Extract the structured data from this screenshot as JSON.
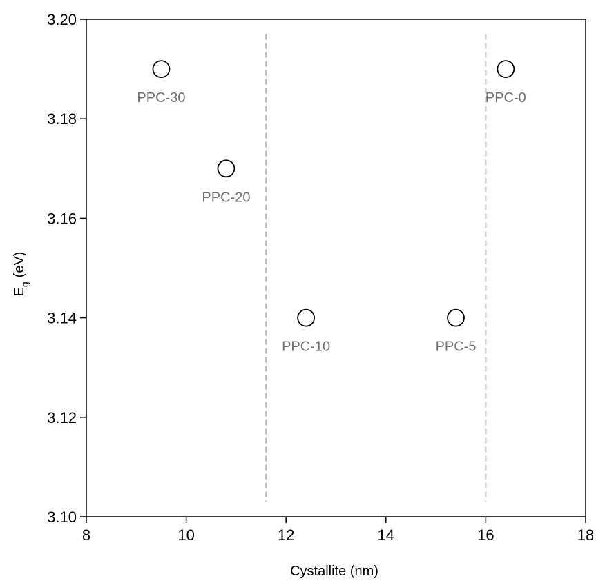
{
  "chart_data": {
    "type": "scatter",
    "title": "",
    "xlabel": "Cystallite (nm)",
    "ylabel": {
      "main": "E",
      "subscript": "g",
      "unit": "(eV)"
    },
    "xlim": [
      8,
      18
    ],
    "ylim": [
      3.1,
      3.2
    ],
    "xticks": [
      8,
      10,
      12,
      14,
      16,
      18
    ],
    "xtick_labels": [
      "8",
      "10",
      "12",
      "14",
      "16",
      "18"
    ],
    "yticks": [
      3.1,
      3.12,
      3.14,
      3.16,
      3.18,
      3.2
    ],
    "ytick_labels": [
      "3.10",
      "3.12",
      "3.14",
      "3.16",
      "3.18",
      "3.20"
    ],
    "grid": false,
    "legend": "none",
    "marker": "open-circle",
    "points": [
      {
        "label": "PPC-30",
        "x": 9.5,
        "y": 3.19,
        "label_side": "below"
      },
      {
        "label": "PPC-20",
        "x": 10.8,
        "y": 3.17,
        "label_side": "below"
      },
      {
        "label": "PPC-10",
        "x": 12.4,
        "y": 3.14,
        "label_side": "below"
      },
      {
        "label": "PPC-5",
        "x": 15.4,
        "y": 3.14,
        "label_side": "below"
      },
      {
        "label": "PPC-0",
        "x": 16.4,
        "y": 3.19,
        "label_side": "below"
      }
    ],
    "reference_lines": [
      {
        "x": 11.6,
        "y_from": 3.103,
        "y_to": 3.197,
        "style": "dashed"
      },
      {
        "x": 16.0,
        "y_from": 3.103,
        "y_to": 3.197,
        "style": "dashed"
      }
    ],
    "colors": {
      "axis": "#000000",
      "marker_edge": "#000000",
      "marker_fill": "#ffffff",
      "point_label": "#707070",
      "reference_line": "#b3b3b3"
    }
  }
}
